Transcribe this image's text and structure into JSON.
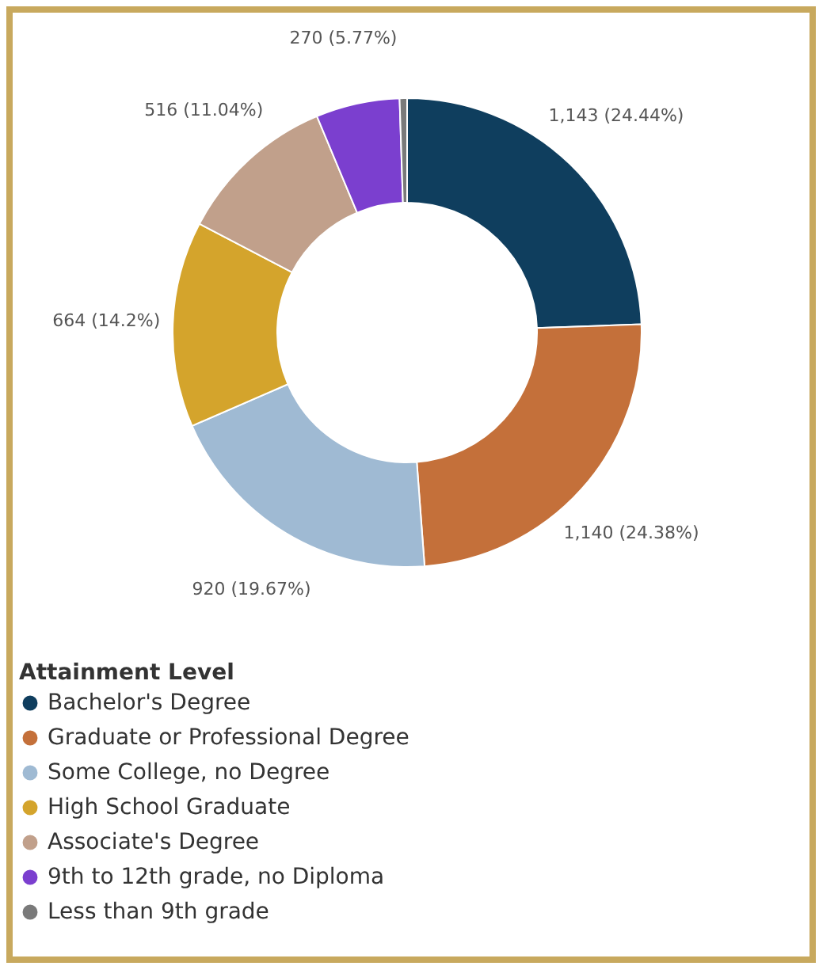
{
  "chart_data": {
    "type": "donut",
    "legend_title": "Attainment Level",
    "legend": "bottom",
    "categories": [
      "Bachelor's Degree",
      "Graduate or Professional Degree",
      "Some College, no Degree",
      "High School Graduate",
      "Associate's Degree",
      "9th to 12th grade, no Diploma",
      "Less than 9th grade"
    ],
    "values": [
      1143,
      1140,
      920,
      664,
      516,
      270,
      24
    ],
    "value_labels": [
      "1,143 (24.44%)",
      "1,140 (24.38%)",
      "920 (19.67%)",
      "664 (14.2%)",
      "516 (11.04%)",
      "270 (5.77%)",
      null
    ],
    "colors": [
      "#0f3e5e",
      "#c4703a",
      "#9fbad3",
      "#d4a42c",
      "#c1a08b",
      "#7b3fcf",
      "#7a7a7a"
    ]
  }
}
